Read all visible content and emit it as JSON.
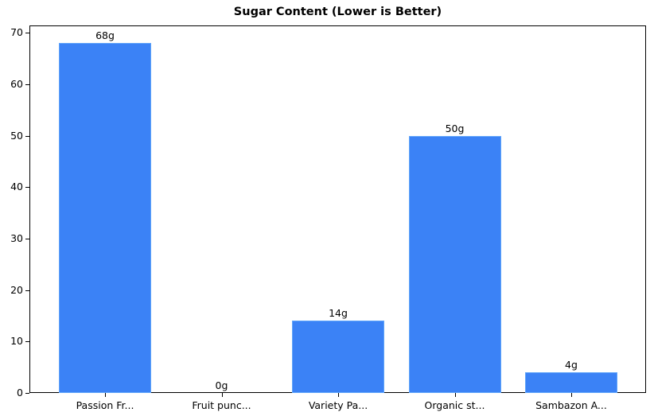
{
  "chart_data": {
    "type": "bar",
    "title": "Sugar Content (Lower is Better)",
    "xlabel": "",
    "ylabel": "",
    "categories": [
      "Passion Fr...",
      "Fruit punc...",
      "Variety Pa...",
      "Organic st...",
      "Sambazon A..."
    ],
    "values": [
      68,
      0,
      14,
      50,
      4
    ],
    "data_labels": [
      "68g",
      "0g",
      "14g",
      "50g",
      "4g"
    ],
    "ylim": [
      0,
      71.4
    ],
    "yticks": [
      0,
      10,
      20,
      30,
      40,
      50,
      60,
      70
    ],
    "grid": false,
    "legend": null,
    "bar_color": "#3b82f6",
    "bar_edge_color": "#60a5fa"
  }
}
